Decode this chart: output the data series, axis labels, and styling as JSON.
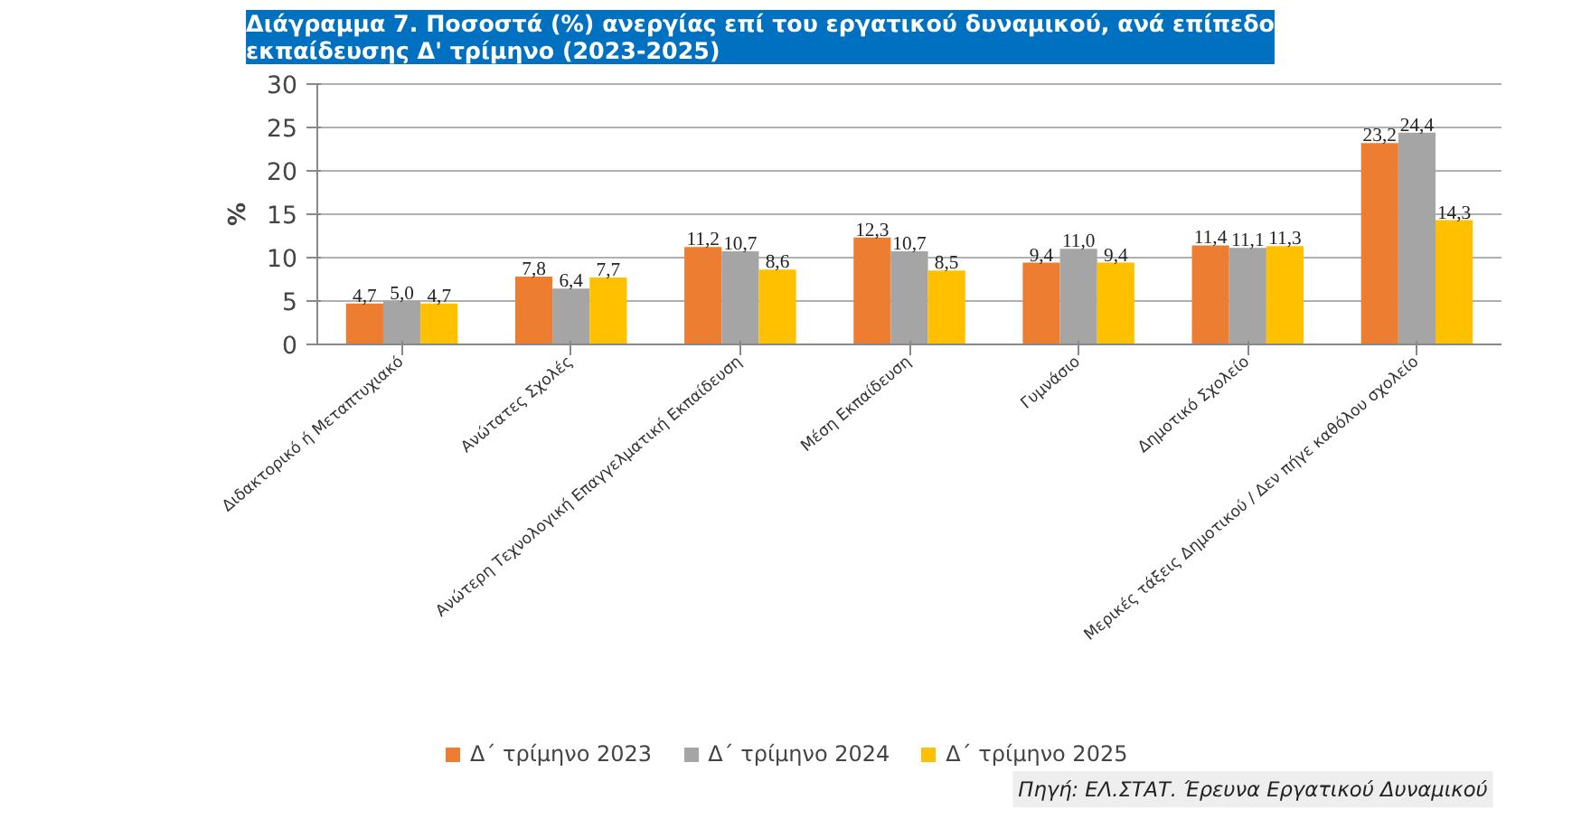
{
  "chart_data": {
    "type": "bar",
    "title": "Διάγραμμα 7. Ποσοστά (%) ανεργίας επί του εργατικού δυναμικού, ανά επίπεδο\nεκπαίδευσης Δ' τρίμηνο (2023-2025)",
    "ylabel": "%",
    "categories": [
      "Διδακτορικό ή Μεταπτυχιακό",
      "Ανώτατες Σχολές",
      "Ανώτερη Τεχνολογική Επαγγελματική Εκπαίδευση",
      "Μέση Εκπαίδευση",
      "Γυμνάσιο",
      "Δημοτικό Σχολείο",
      "Μερικές τάξεις Δημοτικού / Δεν πήγε καθόλου σχολείο"
    ],
    "series": [
      {
        "name": "Δ΄ τρίμηνο 2023",
        "color": "#ed7d31",
        "values": [
          4.7,
          7.8,
          11.2,
          12.3,
          9.4,
          11.4,
          23.2
        ],
        "value_labels": [
          "4,7",
          "7,8",
          "11,2",
          "12,3",
          "9,4",
          "11,4",
          "23,2"
        ]
      },
      {
        "name": "Δ΄ τρίμηνο 2024",
        "color": "#a5a5a5",
        "values": [
          5.0,
          6.4,
          10.7,
          10.7,
          11.0,
          11.1,
          24.4
        ],
        "value_labels": [
          "5,0",
          "6,4",
          "10,7",
          "10,7",
          "11,0",
          "11,1",
          "24,4"
        ]
      },
      {
        "name": "Δ΄ τρίμηνο 2025",
        "color": "#ffc000",
        "values": [
          4.7,
          7.7,
          8.6,
          8.5,
          9.4,
          11.3,
          14.3
        ],
        "value_labels": [
          "4,7",
          "7,7",
          "8,6",
          "8,5",
          "9,4",
          "11,3",
          "14,3"
        ]
      }
    ],
    "ylim": [
      0,
      30
    ],
    "yticks": [
      0,
      5,
      10,
      15,
      20,
      25,
      30
    ],
    "grid": "y",
    "legend": "bottom",
    "annotations": [
      "Πηγή: ΕΛ.ΣΤΑΤ. Έρευνα Εργατικού Δυναμικού"
    ]
  }
}
